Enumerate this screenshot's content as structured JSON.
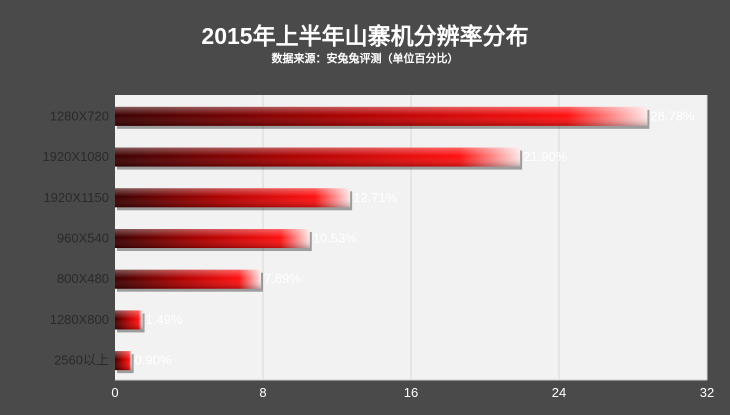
{
  "chart_data": {
    "type": "bar",
    "orientation": "horizontal",
    "title": "2015年上半年山寨机分辨率分布",
    "subtitle": "数据来源：安兔兔评测（单位百分比）",
    "categories": [
      "1280X720",
      "1920X1080",
      "1920X1150",
      "960X540",
      "800X480",
      "1280X800",
      "2560以上"
    ],
    "values": [
      28.78,
      21.9,
      12.71,
      10.53,
      7.89,
      1.49,
      0.9
    ],
    "value_labels": [
      "28.78%",
      "21.90%",
      "12.71%",
      "10.53%",
      "7.89%",
      "1.49%",
      "0.90%"
    ],
    "xlim": [
      0,
      32
    ],
    "xticks": [
      0,
      8,
      16,
      24,
      32
    ],
    "xlabel": "",
    "ylabel": "",
    "grid": true,
    "legend": "none",
    "colors": {
      "background": "#4a4a4a",
      "plot_background": "#f2f2f2",
      "bar_dark": "#3a0000",
      "bar_mid": "#ff0a0a",
      "bar_light": "#ffe6e6",
      "title": "#ffffff",
      "axis_text": "#ffffff",
      "value_text": "#ffffff",
      "grid": "#5c5c5c"
    }
  }
}
